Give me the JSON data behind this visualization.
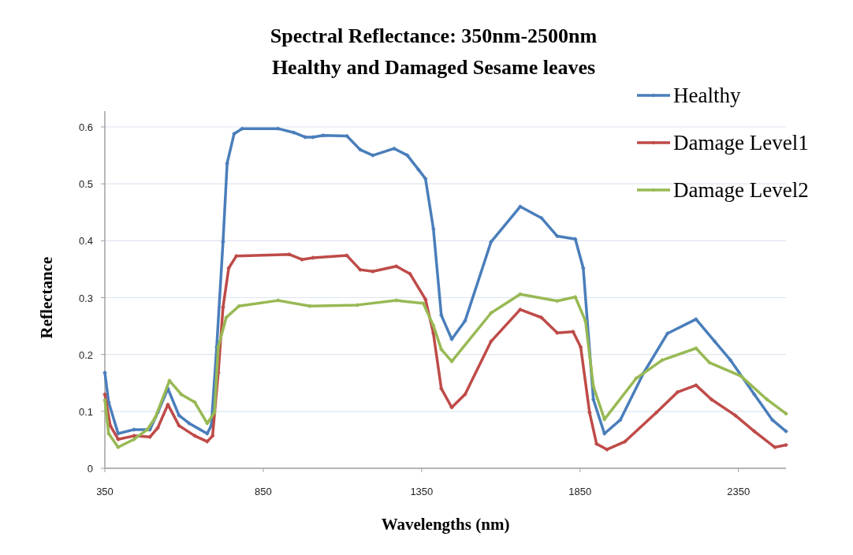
{
  "chart_data": {
    "type": "line",
    "title": "Spectral Reflectance: 350nm-2500nm\nHealthy and Damaged Sesame leaves",
    "xlabel": "Wavelengths (nm)",
    "ylabel": "Reflectance",
    "xlim": [
      350,
      2500
    ],
    "xticks": [
      350,
      850,
      1350,
      1850,
      2350
    ],
    "ylim": [
      0,
      0.6
    ],
    "yticks": [
      0,
      0.1,
      0.2,
      0.3,
      0.4,
      0.5,
      0.6
    ],
    "grid": "y",
    "legend": "top right",
    "marker": "diamond",
    "line_style": "solid",
    "series": [
      {
        "name": "Healthy",
        "color": "#4a7ebb",
        "x": [
          350,
          362,
          392,
          442,
          492,
          517,
          549,
          584,
          616,
          673,
          686,
          703,
          723,
          736,
          758,
          783,
          897,
          947,
          982,
          1007,
          1039,
          1114,
          1156,
          1196,
          1263,
          1305,
          1340,
          1362,
          1387,
          1412,
          1445,
          1487,
          1569,
          1661,
          1728,
          1778,
          1835,
          1860,
          1892,
          1927,
          1977,
          2051,
          2126,
          2216,
          2275,
          2325,
          2400,
          2457,
          2500
        ],
        "values": [
          0.168,
          0.116,
          0.061,
          0.068,
          0.068,
          0.098,
          0.14,
          0.093,
          0.079,
          0.061,
          0.075,
          0.213,
          0.398,
          0.536,
          0.588,
          0.597,
          0.597,
          0.59,
          0.582,
          0.582,
          0.585,
          0.584,
          0.56,
          0.55,
          0.562,
          0.55,
          0.525,
          0.509,
          0.421,
          0.269,
          0.227,
          0.259,
          0.398,
          0.46,
          0.44,
          0.408,
          0.403,
          0.352,
          0.121,
          0.061,
          0.085,
          0.168,
          0.237,
          0.262,
          0.223,
          0.19,
          0.13,
          0.085,
          0.065
        ]
      },
      {
        "name": "Damage Level1",
        "color": "#be4b48",
        "x": [
          350,
          367,
          392,
          442,
          492,
          517,
          549,
          584,
          634,
          673,
          690,
          708,
          723,
          741,
          765,
          932,
          972,
          1007,
          1114,
          1156,
          1196,
          1270,
          1313,
          1362,
          1387,
          1412,
          1445,
          1487,
          1569,
          1661,
          1728,
          1778,
          1828,
          1852,
          1880,
          1902,
          1935,
          1992,
          2091,
          2158,
          2216,
          2265,
          2340,
          2400,
          2465,
          2500
        ],
        "values": [
          0.13,
          0.075,
          0.051,
          0.057,
          0.055,
          0.071,
          0.112,
          0.075,
          0.057,
          0.047,
          0.057,
          0.168,
          0.283,
          0.352,
          0.373,
          0.376,
          0.367,
          0.37,
          0.374,
          0.349,
          0.346,
          0.355,
          0.342,
          0.297,
          0.237,
          0.14,
          0.107,
          0.13,
          0.223,
          0.279,
          0.265,
          0.238,
          0.24,
          0.213,
          0.098,
          0.043,
          0.033,
          0.047,
          0.098,
          0.134,
          0.146,
          0.121,
          0.093,
          0.065,
          0.037,
          0.041
        ]
      },
      {
        "name": "Damage Level2",
        "color": "#98b954",
        "x": [
          350,
          362,
          392,
          442,
          484,
          509,
          554,
          591,
          634,
          673,
          696,
          708,
          733,
          773,
          897,
          997,
          1147,
          1270,
          1355,
          1387,
          1412,
          1445,
          1569,
          1661,
          1778,
          1835,
          1867,
          1892,
          1927,
          2027,
          2109,
          2216,
          2258,
          2358,
          2440,
          2500
        ],
        "values": [
          0.12,
          0.061,
          0.037,
          0.051,
          0.068,
          0.089,
          0.154,
          0.13,
          0.116,
          0.079,
          0.098,
          0.213,
          0.265,
          0.285,
          0.295,
          0.285,
          0.287,
          0.295,
          0.29,
          0.251,
          0.209,
          0.188,
          0.273,
          0.306,
          0.294,
          0.301,
          0.259,
          0.144,
          0.086,
          0.158,
          0.19,
          0.211,
          0.186,
          0.162,
          0.121,
          0.096
        ]
      }
    ]
  }
}
